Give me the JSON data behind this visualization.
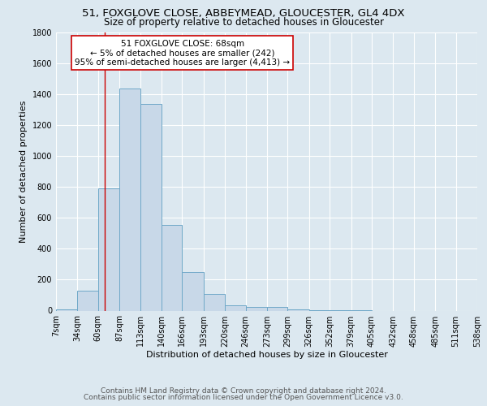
{
  "title": "51, FOXGLOVE CLOSE, ABBEYMEAD, GLOUCESTER, GL4 4DX",
  "subtitle": "Size of property relative to detached houses in Gloucester",
  "xlabel": "Distribution of detached houses by size in Gloucester",
  "ylabel": "Number of detached properties",
  "bin_edges": [
    7,
    34,
    60,
    87,
    113,
    140,
    166,
    193,
    220,
    246,
    273,
    299,
    326,
    352,
    379,
    405,
    432,
    458,
    485,
    511,
    538
  ],
  "bar_heights": [
    10,
    130,
    790,
    1440,
    1340,
    555,
    250,
    110,
    35,
    25,
    22,
    10,
    3,
    2,
    1,
    0,
    0,
    0,
    0,
    0
  ],
  "bar_color": "#c8d8e8",
  "bar_edge_color": "#6fa8c8",
  "vline_x": 68,
  "vline_color": "#cc0000",
  "annotation_title": "51 FOXGLOVE CLOSE: 68sqm",
  "annotation_line1": "← 5% of detached houses are smaller (242)",
  "annotation_line2": "95% of semi-detached houses are larger (4,413) →",
  "annotation_box_color": "#ffffff",
  "annotation_box_edge": "#cc0000",
  "ylim": [
    0,
    1800
  ],
  "yticks": [
    0,
    200,
    400,
    600,
    800,
    1000,
    1200,
    1400,
    1600,
    1800
  ],
  "tick_labels": [
    "7sqm",
    "34sqm",
    "60sqm",
    "87sqm",
    "113sqm",
    "140sqm",
    "166sqm",
    "193sqm",
    "220sqm",
    "246sqm",
    "273sqm",
    "299sqm",
    "326sqm",
    "352sqm",
    "379sqm",
    "405sqm",
    "432sqm",
    "458sqm",
    "485sqm",
    "511sqm",
    "538sqm"
  ],
  "footer_line1": "Contains HM Land Registry data © Crown copyright and database right 2024.",
  "footer_line2": "Contains public sector information licensed under the Open Government Licence v3.0.",
  "background_color": "#dce8f0",
  "grid_color": "#ffffff",
  "title_fontsize": 9.5,
  "subtitle_fontsize": 8.5,
  "axis_label_fontsize": 8,
  "tick_fontsize": 7,
  "annotation_fontsize": 7.5,
  "footer_fontsize": 6.5
}
